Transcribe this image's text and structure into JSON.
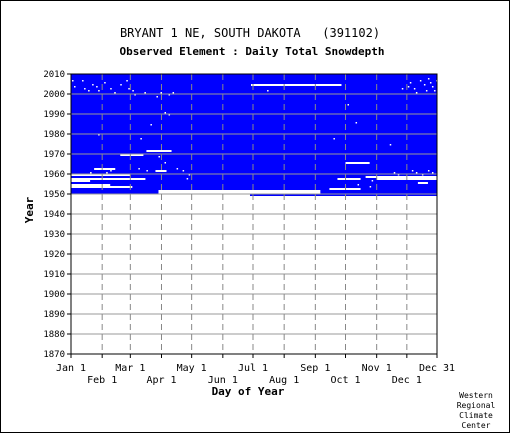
{
  "chart_data": {
    "type": "heatmap",
    "title": "BRYANT 1 NE, SOUTH DAKOTA   (391102)",
    "subtitle": "Observed Element : Daily Total Snowdepth",
    "xlabel": "Day of Year",
    "ylabel": "Year",
    "xlim": [
      1,
      365
    ],
    "ylim": [
      1870,
      2010
    ],
    "grid": true,
    "colors": {
      "observed": "#0000ff",
      "missing": "#ffffff",
      "grid": "#999999",
      "month_line": "#888888"
    },
    "x_ticks_top": [
      {
        "label": "Jan 1",
        "day": 1
      },
      {
        "label": "Mar 1",
        "day": 60
      },
      {
        "label": "May 1",
        "day": 121
      },
      {
        "label": "Jul 1",
        "day": 182
      },
      {
        "label": "Sep 1",
        "day": 244
      },
      {
        "label": "Nov 1",
        "day": 305
      },
      {
        "label": "Dec 31",
        "day": 365
      }
    ],
    "x_ticks_bottom": [
      {
        "label": "Feb 1",
        "day": 32
      },
      {
        "label": "Apr 1",
        "day": 91
      },
      {
        "label": "Jun 1",
        "day": 152
      },
      {
        "label": "Aug 1",
        "day": 213
      },
      {
        "label": "Oct 1",
        "day": 274
      },
      {
        "label": "Dec 1",
        "day": 335
      }
    ],
    "y_ticks": [
      1870,
      1880,
      1890,
      1900,
      1910,
      1920,
      1930,
      1940,
      1950,
      1960,
      1970,
      1980,
      1990,
      2000,
      2010
    ],
    "observed_block": {
      "year_start": 1950,
      "year_end": 2010,
      "day_start": 1,
      "day_end": 365
    },
    "partial_years": [
      {
        "year": 1950,
        "observed": [
          [
            179,
            365
          ]
        ]
      },
      {
        "year": 1951,
        "observed": [
          [
            1,
            88
          ],
          [
            249,
            365
          ]
        ]
      },
      {
        "year": 1952,
        "observed": [
          [
            1,
            88
          ],
          [
            249,
            365
          ]
        ]
      }
    ],
    "missing_segments": [
      {
        "year": 2005,
        "day_start": 180,
        "day_end": 270
      },
      {
        "year": 1972,
        "day_start": 76,
        "day_end": 101
      },
      {
        "year": 1970,
        "day_start": 50,
        "day_end": 73
      },
      {
        "year": 1966,
        "day_start": 274,
        "day_end": 298
      },
      {
        "year": 1963,
        "day_start": 24,
        "day_end": 45
      },
      {
        "year": 1962,
        "day_start": 85,
        "day_end": 96
      },
      {
        "year": 1960,
        "day_start": 1,
        "day_end": 60
      },
      {
        "year": 1958,
        "day_start": 266,
        "day_end": 289
      },
      {
        "year": 1958,
        "day_start": 305,
        "day_end": 365
      },
      {
        "year": 1958,
        "day_start": 1,
        "day_end": 75
      },
      {
        "year": 1957,
        "day_start": 1,
        "day_end": 20
      },
      {
        "year": 1955,
        "day_start": 1,
        "day_end": 40
      },
      {
        "year": 1954,
        "day_start": 1,
        "day_end": 62
      },
      {
        "year": 1953,
        "day_start": 258,
        "day_end": 289
      },
      {
        "year": 1951,
        "day_start": 120,
        "day_end": 168
      },
      {
        "year": 1956,
        "day_start": 346,
        "day_end": 356
      },
      {
        "year": 1959,
        "day_start": 294,
        "day_end": 365
      }
    ],
    "missing_points": [
      [
        2,
        2007
      ],
      [
        4,
        2004
      ],
      [
        12,
        2007
      ],
      [
        14,
        2003
      ],
      [
        18,
        2002
      ],
      [
        22,
        2005
      ],
      [
        26,
        2004
      ],
      [
        28,
        2002
      ],
      [
        34,
        2006
      ],
      [
        40,
        2003
      ],
      [
        44,
        2001
      ],
      [
        50,
        2005
      ],
      [
        56,
        2007
      ],
      [
        58,
        2003
      ],
      [
        62,
        2002
      ],
      [
        64,
        2000
      ],
      [
        74,
        2001
      ],
      [
        86,
        1999
      ],
      [
        90,
        2001
      ],
      [
        98,
        2000
      ],
      [
        102,
        2001
      ],
      [
        94,
        1991
      ],
      [
        98,
        1990
      ],
      [
        80,
        1985
      ],
      [
        70,
        1978
      ],
      [
        28,
        1980
      ],
      [
        118,
        1960
      ],
      [
        112,
        1962
      ],
      [
        106,
        1963
      ],
      [
        116,
        1958
      ],
      [
        94,
        1966
      ],
      [
        88,
        1969
      ],
      [
        36,
        1961
      ],
      [
        40,
        1962
      ],
      [
        68,
        1963
      ],
      [
        20,
        1961
      ],
      [
        76,
        1962
      ],
      [
        196,
        2002
      ],
      [
        284,
        1986
      ],
      [
        262,
        1978
      ],
      [
        276,
        1995
      ],
      [
        318,
        1975
      ],
      [
        338,
        2006
      ],
      [
        342,
        2003
      ],
      [
        344,
        2001
      ],
      [
        336,
        2004
      ],
      [
        348,
        2007
      ],
      [
        352,
        2005
      ],
      [
        354,
        2002
      ],
      [
        356,
        2008
      ],
      [
        358,
        2006
      ],
      [
        360,
        2004
      ],
      [
        362,
        2002
      ],
      [
        364,
        2007
      ],
      [
        330,
        2003
      ],
      [
        326,
        1960
      ],
      [
        322,
        1961
      ],
      [
        340,
        1962
      ],
      [
        344,
        1961
      ],
      [
        350,
        1960
      ],
      [
        356,
        1962
      ],
      [
        360,
        1961
      ],
      [
        364,
        1959
      ],
      [
        332,
        1958
      ],
      [
        300,
        1957
      ],
      [
        312,
        1958
      ],
      [
        286,
        1955
      ],
      [
        298,
        1954
      ]
    ]
  },
  "credit": [
    "Western",
    "Regional",
    "Climate",
    "Center"
  ]
}
